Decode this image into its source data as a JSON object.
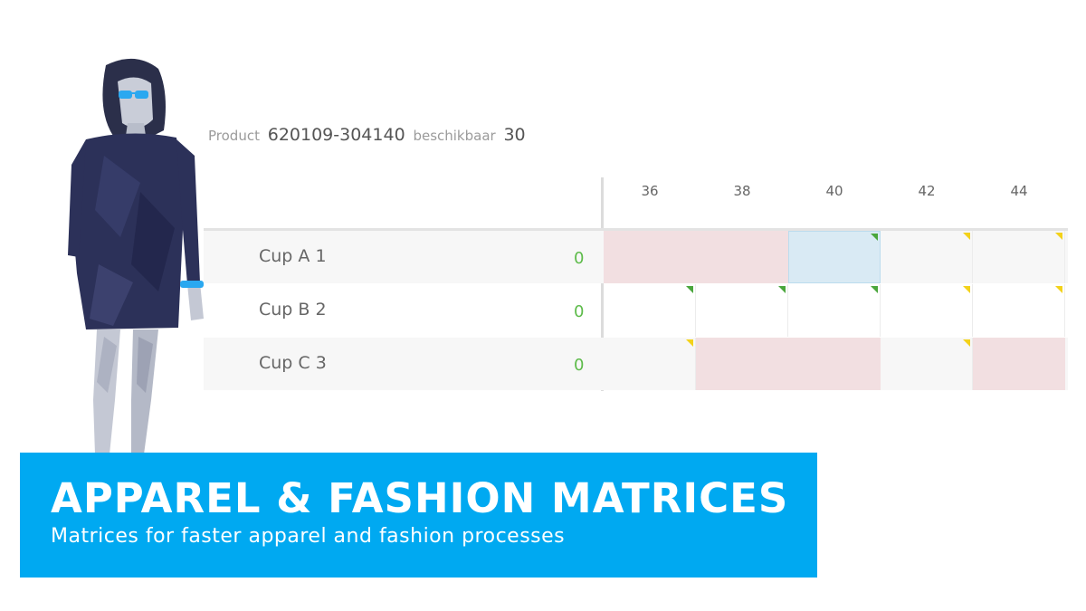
{
  "product": {
    "label": "Product",
    "code": "620109-304140",
    "availability_label": "beschikbaar",
    "availability_value": "30"
  },
  "matrix": {
    "sizes": [
      "36",
      "38",
      "40",
      "42",
      "44"
    ],
    "rows": [
      {
        "label": "Cup A 1",
        "count": "0",
        "cells": [
          {
            "state": "unavailable",
            "flag": "none"
          },
          {
            "state": "unavailable",
            "flag": "none"
          },
          {
            "state": "selected",
            "flag": "green"
          },
          {
            "state": "empty",
            "flag": "yellow"
          },
          {
            "state": "empty",
            "flag": "yellow"
          }
        ]
      },
      {
        "label": "Cup B 2",
        "count": "0",
        "cells": [
          {
            "state": "empty",
            "flag": "green"
          },
          {
            "state": "empty",
            "flag": "green"
          },
          {
            "state": "empty",
            "flag": "green"
          },
          {
            "state": "empty",
            "flag": "yellow"
          },
          {
            "state": "empty",
            "flag": "yellow"
          }
        ]
      },
      {
        "label": "Cup C 3",
        "count": "0",
        "cells": [
          {
            "state": "empty",
            "flag": "yellow"
          },
          {
            "state": "unavailable",
            "flag": "none"
          },
          {
            "state": "unavailable",
            "flag": "none"
          },
          {
            "state": "empty",
            "flag": "yellow"
          },
          {
            "state": "unavailable",
            "flag": "none"
          }
        ]
      }
    ]
  },
  "banner": {
    "title": "APPAREL & FASHION MATRICES",
    "subtitle": "Matrices for faster apparel and fashion processes"
  },
  "colors": {
    "accent": "#00a9f1",
    "row_alt": "#f7f7f7",
    "unavailable": "#f2dfe1",
    "selected": "#d9eaf4",
    "flag_green": "#4aa63c",
    "flag_yellow": "#f3d21a",
    "count_green": "#5dbb4a"
  }
}
